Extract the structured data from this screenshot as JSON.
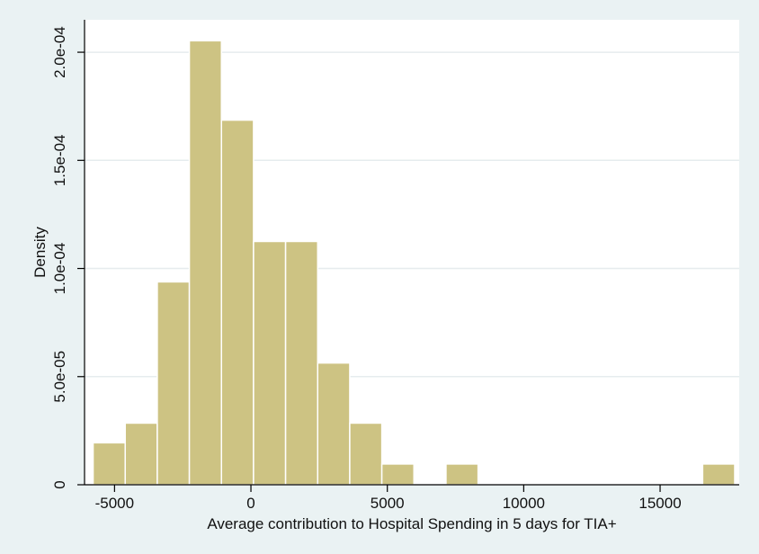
{
  "chart_data": {
    "type": "bar",
    "title": "",
    "xlabel": "Average contribution to Hospital Spending in 5 days for TIA+",
    "ylabel": "Density",
    "xlim": [
      -6100,
      17900
    ],
    "ylim": [
      0,
      0.000215
    ],
    "x_ticks": [
      -5000,
      0,
      5000,
      10000,
      15000
    ],
    "x_tick_labels": [
      "-5000",
      "0",
      "5000",
      "10000",
      "15000"
    ],
    "y_ticks": [
      0,
      5e-05,
      0.0001,
      0.00015,
      0.0002
    ],
    "y_tick_labels": [
      "0",
      "5.0e-05",
      "1.0e-04",
      "1.5e-04",
      "2.0e-04"
    ],
    "grid": true,
    "bar_color": "#cdc383",
    "bar_edge_color": "#ffffff",
    "bins": [
      {
        "x0": -5785,
        "x1": -4609,
        "density": 1.94e-05
      },
      {
        "x0": -4609,
        "x1": -3433,
        "density": 2.85e-05
      },
      {
        "x0": -3433,
        "x1": -2257,
        "density": 9.38e-05
      },
      {
        "x0": -2257,
        "x1": -1081,
        "density": 0.0002053
      },
      {
        "x0": -1081,
        "x1": 95,
        "density": 0.0001686
      },
      {
        "x0": 95,
        "x1": 1271,
        "density": 0.0001125
      },
      {
        "x0": 1271,
        "x1": 2447,
        "density": 0.0001125
      },
      {
        "x0": 2447,
        "x1": 3623,
        "density": 5.63e-05
      },
      {
        "x0": 3623,
        "x1": 4799,
        "density": 2.85e-05
      },
      {
        "x0": 4799,
        "x1": 5975,
        "density": 9.6e-06
      },
      {
        "x0": 7151,
        "x1": 8327,
        "density": 9.6e-06
      },
      {
        "x0": 16559,
        "x1": 17735,
        "density": 9.6e-06
      }
    ]
  }
}
